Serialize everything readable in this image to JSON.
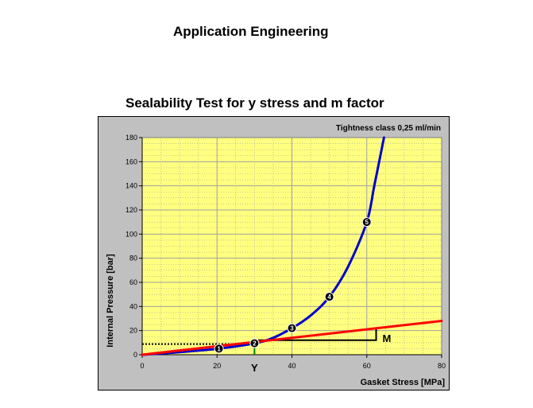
{
  "header": {
    "title": "Application Engineering"
  },
  "chart_data": {
    "type": "line",
    "title": "Sealability Test for y stress and m factor",
    "subtitle": "Tightness class 0,25 ml/min",
    "xlabel": "Gasket Stress [MPa]",
    "ylabel": "Internal Pressure [bar]",
    "xlim": [
      0,
      80
    ],
    "ylim": [
      0,
      180
    ],
    "x_ticks": [
      0,
      20,
      40,
      60,
      80
    ],
    "y_ticks": [
      0,
      20,
      40,
      60,
      80,
      100,
      120,
      140,
      160,
      180
    ],
    "grid": true,
    "colors": {
      "plot_bg": "#ffff80",
      "frame_bg": "#c0c0c0",
      "curve": "#0000cc",
      "line": "#ff0000",
      "grid": "#a0a0a0"
    },
    "series": [
      {
        "color": "#0000cc",
        "x": [
          0,
          10,
          20,
          30,
          35,
          40,
          45,
          50,
          55,
          60,
          62,
          64.6
        ],
        "y": [
          0,
          2.1,
          4.9,
          9.4,
          14,
          22,
          32.5,
          48,
          73,
          110,
          140,
          180
        ]
      },
      {
        "color": "#ff0000",
        "x": [
          0,
          80
        ],
        "y": [
          0,
          28
        ]
      }
    ],
    "markers": [
      {
        "label": "1",
        "x": 20.5,
        "y": 5
      },
      {
        "label": "2",
        "x": 30,
        "y": 9.5
      },
      {
        "label": "3",
        "x": 40,
        "y": 22
      },
      {
        "label": "4",
        "x": 50,
        "y": 48
      },
      {
        "label": "5",
        "x": 60,
        "y": 110
      }
    ],
    "annotations": {
      "y_point": {
        "label": "Y",
        "x": 30,
        "y": 9.5
      },
      "m_slope": {
        "label": "M",
        "x1": 31,
        "x2": 62.5,
        "y_low": 12,
        "y_high": 21.5
      }
    }
  }
}
